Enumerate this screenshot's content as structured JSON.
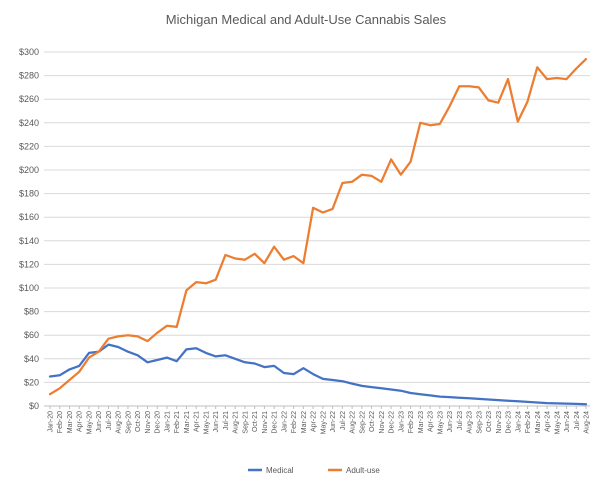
{
  "chart_data": {
    "type": "line",
    "title": "Michigan Medical and Adult-Use Cannabis Sales",
    "xlabel": "",
    "ylabel": "",
    "ylim": [
      0,
      300
    ],
    "yticks": [
      "$0",
      "$20",
      "$40",
      "$60",
      "$80",
      "$100",
      "$120",
      "$140",
      "$160",
      "$180",
      "$200",
      "$220",
      "$240",
      "$260",
      "$280",
      "$300"
    ],
    "grid": "horizontal",
    "legend": "bottom",
    "x": [
      "Jan-20",
      "Feb-20",
      "Mar-20",
      "Apr-20",
      "May-20",
      "Jun-20",
      "Jul-20",
      "Aug-20",
      "Sep-20",
      "Oct-20",
      "Nov-20",
      "Dec-20",
      "Jan-21",
      "Feb-21",
      "Mar-21",
      "Apr-21",
      "May-21",
      "Jun-21",
      "Jul-21",
      "Aug-21",
      "Sep-21",
      "Oct-21",
      "Nov-21",
      "Dec-21",
      "Jan-22",
      "Feb-22",
      "Mar-22",
      "Apr-22",
      "May-22",
      "Jun-22",
      "Jul-22",
      "Aug-22",
      "Sep-22",
      "Oct-22",
      "Nov-22",
      "Dec-22",
      "Jan-23",
      "Feb-23",
      "Mar-23",
      "Apr-23",
      "May-23",
      "Jun-23",
      "Jul-23",
      "Aug-23",
      "Sep-23",
      "Oct-23",
      "Nov-23",
      "Dec-23",
      "Jan-24",
      "Feb-24",
      "Mar-24",
      "Apr-24",
      "May-24",
      "Jun-24",
      "Jul-24",
      "Aug-24"
    ],
    "series": [
      {
        "name": "Medical",
        "color": "#4472C4",
        "values": [
          25,
          26,
          31,
          34,
          45,
          46,
          52,
          50,
          46,
          43,
          37,
          39,
          41,
          38,
          48,
          49,
          45,
          42,
          43,
          40,
          37,
          36,
          33,
          34,
          28,
          27,
          32,
          27,
          23,
          22,
          21,
          19,
          17,
          16,
          15,
          14,
          13,
          11,
          10,
          9,
          8,
          7.5,
          7,
          6.5,
          6,
          5.5,
          5,
          4.5,
          4,
          3.5,
          3,
          2.5,
          2.2,
          2,
          1.8,
          1.5
        ]
      },
      {
        "name": "Adult-use",
        "color": "#ED7D31",
        "values": [
          10,
          15,
          22,
          29,
          41,
          46,
          57,
          59,
          60,
          59,
          55,
          62,
          68,
          67,
          98,
          105,
          104,
          107,
          128,
          125,
          124,
          129,
          121,
          135,
          124,
          127,
          121,
          168,
          164,
          167,
          189,
          190,
          196,
          195,
          190,
          209,
          196,
          207,
          240,
          238,
          239,
          254,
          271,
          271,
          270,
          259,
          257,
          277,
          241,
          258,
          287,
          277,
          278,
          277,
          286,
          294
        ]
      }
    ]
  }
}
